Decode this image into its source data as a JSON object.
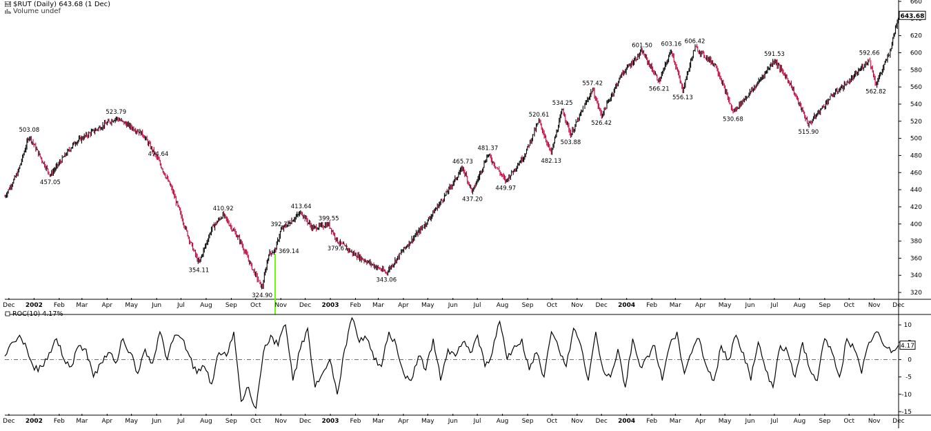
{
  "header": {
    "title": "$RUT (Daily) 643.68 (1 Dec)",
    "volume": "Volume undef"
  },
  "colors": {
    "up": "#000000",
    "down": "#c2003a",
    "marker": "#66ff00",
    "grid": "#555555"
  },
  "chart_data": [
    {
      "type": "line",
      "panel": "price",
      "series": [
        {
          "name": "$RUT",
          "values": [
            432,
            460,
            503.08,
            476,
            457.05,
            495,
            510,
            523.79,
            505,
            474.64,
            440,
            380,
            354.11,
            395,
            410.92,
            380,
            350,
            324.9,
            365,
            369.14,
            392.73,
            413.64,
            395,
            399.55,
            379.67,
            365,
            343.06,
            370,
            400,
            430,
            465.73,
            437.2,
            481.37,
            449.97,
            480,
            520.61,
            482.13,
            534.25,
            503.88,
            557.42,
            526.42,
            575,
            601.5,
            566.21,
            603.16,
            556.13,
            606.42,
            585,
            530.68,
            560,
            591.53,
            565,
            515.9,
            550,
            570,
            592.66,
            562.82,
            600,
            643.68
          ]
        }
      ],
      "x": [
        "2001-11-26",
        "2001-12-12",
        "2001-12-26",
        "2002-01-10",
        "2002-01-21",
        "2002-02-20",
        "2002-03-18",
        "2002-04-12",
        "2002-05-15",
        "2002-06-03",
        "2002-06-20",
        "2002-07-12",
        "2002-07-23",
        "2002-08-08",
        "2002-08-22",
        "2002-09-12",
        "2002-09-26",
        "2002-10-09",
        "2002-10-17",
        "2002-10-25",
        "2002-11-01",
        "2002-11-26",
        "2002-12-10",
        "2002-12-30",
        "2003-01-10",
        "2003-01-30",
        "2003-03-11",
        "2003-04-01",
        "2003-04-28",
        "2003-05-20",
        "2003-06-13",
        "2003-06-25",
        "2003-07-14",
        "2003-08-05",
        "2003-08-28",
        "2003-09-15",
        "2003-09-30",
        "2003-10-14",
        "2003-10-24",
        "2003-11-20",
        "2003-12-01",
        "2003-12-26",
        "2004-01-20",
        "2004-02-10",
        "2004-02-25",
        "2004-03-10",
        "2004-03-25",
        "2004-04-20",
        "2004-05-11",
        "2004-06-07",
        "2004-07-01",
        "2004-07-20",
        "2004-08-12",
        "2004-09-10",
        "2004-10-05",
        "2004-10-26",
        "2004-11-03",
        "2004-11-20",
        "2004-12-01"
      ],
      "annotations": [
        {
          "x": "2001-12-26",
          "y": 503.08,
          "text": "503.08",
          "pos": "above"
        },
        {
          "x": "2002-01-21",
          "y": 457.05,
          "text": "457.05",
          "pos": "below"
        },
        {
          "x": "2002-04-12",
          "y": 523.79,
          "text": "523.79",
          "pos": "above"
        },
        {
          "x": "2002-06-03",
          "y": 474.64,
          "text": "474.64",
          "pos": "above"
        },
        {
          "x": "2002-07-23",
          "y": 354.11,
          "text": "354.11",
          "pos": "below"
        },
        {
          "x": "2002-08-22",
          "y": 410.92,
          "text": "410.92",
          "pos": "above"
        },
        {
          "x": "2002-10-09",
          "y": 324.9,
          "text": "324.90",
          "pos": "below"
        },
        {
          "x": "2002-10-25",
          "y": 369.14,
          "text": "369.14",
          "pos": "right"
        },
        {
          "x": "2002-11-01",
          "y": 392.73,
          "text": "392.73",
          "pos": "above"
        },
        {
          "x": "2002-11-26",
          "y": 413.64,
          "text": "413.64",
          "pos": "above"
        },
        {
          "x": "2002-12-30",
          "y": 399.55,
          "text": "399.55",
          "pos": "above"
        },
        {
          "x": "2003-01-10",
          "y": 379.67,
          "text": "379.67",
          "pos": "below"
        },
        {
          "x": "2003-03-11",
          "y": 343.06,
          "text": "343.06",
          "pos": "below"
        },
        {
          "x": "2003-06-13",
          "y": 465.73,
          "text": "465.73",
          "pos": "above"
        },
        {
          "x": "2003-06-25",
          "y": 437.2,
          "text": "437.20",
          "pos": "below"
        },
        {
          "x": "2003-07-14",
          "y": 481.37,
          "text": "481.37",
          "pos": "above"
        },
        {
          "x": "2003-08-05",
          "y": 449.97,
          "text": "449.97",
          "pos": "below"
        },
        {
          "x": "2003-09-15",
          "y": 520.61,
          "text": "520.61",
          "pos": "above"
        },
        {
          "x": "2003-09-30",
          "y": 482.13,
          "text": "482.13",
          "pos": "below"
        },
        {
          "x": "2003-10-14",
          "y": 534.25,
          "text": "534.25",
          "pos": "above"
        },
        {
          "x": "2003-10-24",
          "y": 503.88,
          "text": "503.88",
          "pos": "below"
        },
        {
          "x": "2003-11-20",
          "y": 557.42,
          "text": "557.42",
          "pos": "above"
        },
        {
          "x": "2003-12-01",
          "y": 526.42,
          "text": "526.42",
          "pos": "below"
        },
        {
          "x": "2004-01-20",
          "y": 601.5,
          "text": "601.50",
          "pos": "above"
        },
        {
          "x": "2004-02-10",
          "y": 566.21,
          "text": "566.21",
          "pos": "below"
        },
        {
          "x": "2004-02-25",
          "y": 603.16,
          "text": "603.16",
          "pos": "above"
        },
        {
          "x": "2004-03-10",
          "y": 556.13,
          "text": "556.13",
          "pos": "below"
        },
        {
          "x": "2004-03-25",
          "y": 606.42,
          "text": "606.42",
          "pos": "above"
        },
        {
          "x": "2004-05-11",
          "y": 530.68,
          "text": "530.68",
          "pos": "below"
        },
        {
          "x": "2004-07-01",
          "y": 591.53,
          "text": "591.53",
          "pos": "above"
        },
        {
          "x": "2004-08-12",
          "y": 515.9,
          "text": "515.90",
          "pos": "below"
        },
        {
          "x": "2004-10-26",
          "y": 592.66,
          "text": "592.66",
          "pos": "above"
        },
        {
          "x": "2004-11-03",
          "y": 562.82,
          "text": "562.82",
          "pos": "below"
        }
      ],
      "last_value_label": "643.68",
      "ylim": [
        312,
        660
      ],
      "yticks": [
        320,
        340,
        360,
        380,
        400,
        420,
        440,
        460,
        480,
        500,
        520,
        540,
        560,
        580,
        600,
        620,
        640,
        660
      ],
      "grid": false
    },
    {
      "type": "line",
      "panel": "indicator",
      "title": "ROC(10) 4.17%",
      "series": [
        {
          "name": "ROC(10)",
          "values": [
            1,
            5,
            7,
            3,
            -3,
            -2,
            2,
            6,
            0,
            -2,
            4,
            3,
            -5,
            -1,
            2,
            -1,
            6,
            2,
            -4,
            3,
            -1,
            8,
            0,
            7,
            6,
            1,
            -4,
            -2,
            -7,
            2,
            1,
            8,
            -12,
            -8,
            -14,
            2,
            7,
            4,
            10,
            -6,
            3,
            9,
            -8,
            -4,
            0,
            -10,
            3,
            12,
            5,
            6,
            0,
            -2,
            8,
            4,
            -4,
            -6,
            1,
            -3,
            6,
            -6,
            3,
            1,
            5,
            2,
            7,
            -2,
            2,
            11,
            0,
            4,
            6,
            -3,
            2,
            -5,
            8,
            3,
            -2,
            9,
            4,
            -6,
            8,
            -3,
            -5,
            3,
            -8,
            6,
            -2,
            1,
            4,
            -6,
            4,
            8,
            -4,
            2,
            6,
            -2,
            -6,
            4,
            0,
            7,
            2,
            -6,
            5,
            -3,
            -8,
            4,
            2,
            -5,
            5,
            -3,
            -6,
            6,
            2,
            -5,
            6,
            3,
            -4,
            5,
            8,
            4,
            2,
            4.17
          ]
        }
      ],
      "x_start": "2001-11-26",
      "x_end": "2004-12-01",
      "last_value_label": "4.17",
      "ylim": [
        -16,
        13
      ],
      "yticks": [
        -15,
        -10,
        -5,
        0,
        5,
        10
      ],
      "zero_line": "dash-dot"
    }
  ],
  "x_axis": {
    "start": "2001-11-26",
    "end": "2004-12-01",
    "ticks": [
      {
        "date": "2001-12-01",
        "label": "Dec"
      },
      {
        "date": "2002-01-01",
        "label": "2002",
        "bold": true
      },
      {
        "date": "2002-02-01",
        "label": "Feb"
      },
      {
        "date": "2002-03-01",
        "label": "Mar"
      },
      {
        "date": "2002-04-01",
        "label": "Apr"
      },
      {
        "date": "2002-05-01",
        "label": "May"
      },
      {
        "date": "2002-06-01",
        "label": "Jun"
      },
      {
        "date": "2002-07-01",
        "label": "Jul"
      },
      {
        "date": "2002-08-01",
        "label": "Aug"
      },
      {
        "date": "2002-09-01",
        "label": "Sep"
      },
      {
        "date": "2002-10-01",
        "label": "Oct"
      },
      {
        "date": "2002-11-01",
        "label": "Nov"
      },
      {
        "date": "2002-12-01",
        "label": "Dec"
      },
      {
        "date": "2003-01-01",
        "label": "2003",
        "bold": true
      },
      {
        "date": "2003-02-01",
        "label": "Feb"
      },
      {
        "date": "2003-03-01",
        "label": "Mar"
      },
      {
        "date": "2003-04-01",
        "label": "Apr"
      },
      {
        "date": "2003-05-01",
        "label": "May"
      },
      {
        "date": "2003-06-01",
        "label": "Jun"
      },
      {
        "date": "2003-07-01",
        "label": "Jul"
      },
      {
        "date": "2003-08-01",
        "label": "Aug"
      },
      {
        "date": "2003-09-01",
        "label": "Sep"
      },
      {
        "date": "2003-10-01",
        "label": "Oct"
      },
      {
        "date": "2003-11-01",
        "label": "Nov"
      },
      {
        "date": "2003-12-01",
        "label": "Dec"
      },
      {
        "date": "2004-01-01",
        "label": "2004",
        "bold": true
      },
      {
        "date": "2004-02-01",
        "label": "Feb"
      },
      {
        "date": "2004-03-01",
        "label": "Mar"
      },
      {
        "date": "2004-04-01",
        "label": "Apr"
      },
      {
        "date": "2004-05-01",
        "label": "May"
      },
      {
        "date": "2004-06-01",
        "label": "Jun"
      },
      {
        "date": "2004-07-01",
        "label": "Jul"
      },
      {
        "date": "2004-08-01",
        "label": "Aug"
      },
      {
        "date": "2004-09-01",
        "label": "Sep"
      },
      {
        "date": "2004-10-01",
        "label": "Oct"
      },
      {
        "date": "2004-11-01",
        "label": "Nov"
      },
      {
        "date": "2004-12-01",
        "label": "Dec"
      }
    ]
  },
  "marker": {
    "date": "2002-10-25",
    "from_value": 365
  }
}
